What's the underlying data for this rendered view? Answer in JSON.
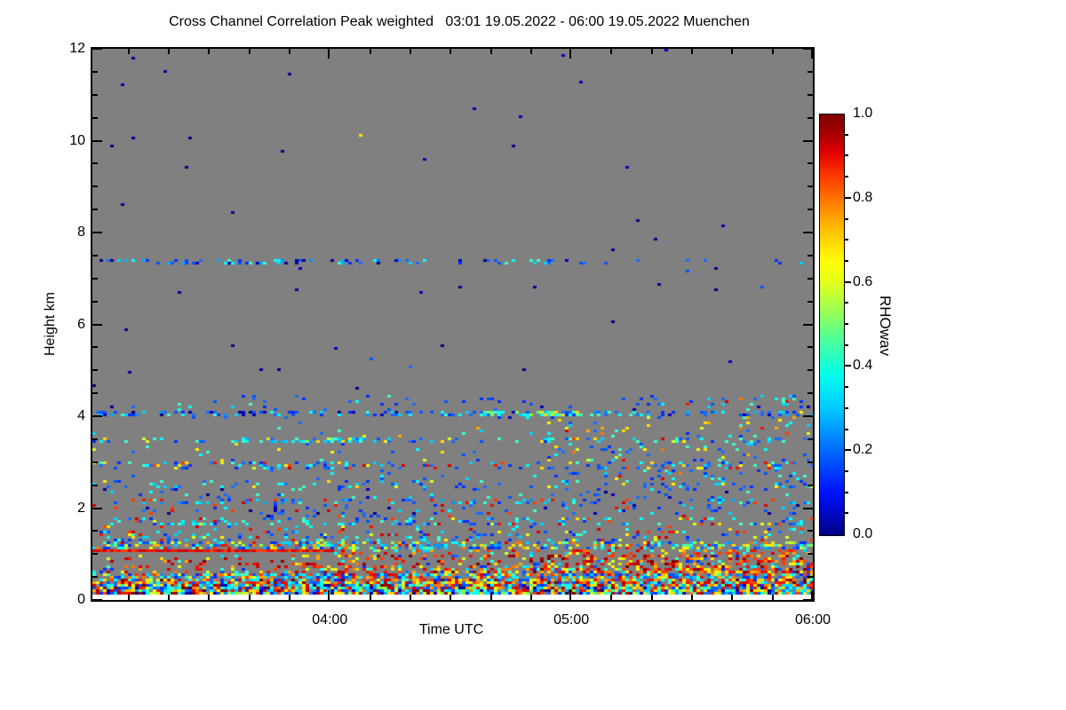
{
  "chart": {
    "title": "Cross Channel Correlation Peak weighted   03:01 19.05.2022 - 06:00 19.05.2022 Muenchen"
  },
  "chart_data": {
    "type": "heatmap",
    "title": "Cross Channel Correlation Peak weighted   03:01 19.05.2022 - 06:00 19.05.2022 Muenchen",
    "title_parts": {
      "measurement": "Cross Channel Correlation Peak weighted",
      "period": "03:01 19.05.2022 - 06:00 19.05.2022",
      "location": "Muenchen"
    },
    "x_axis": {
      "label": "Time UTC",
      "start": "03:01",
      "end": "06:00",
      "total_min": 179,
      "major_ticks": [
        {
          "label": "04:00",
          "min": 59
        },
        {
          "label": "05:00",
          "min": 119
        },
        {
          "label": "06:00",
          "min": 179
        }
      ],
      "minor_first_min": 9,
      "minor_step_min": 10
    },
    "y_axis": {
      "label": "Height km",
      "range": [
        0,
        12
      ],
      "major_ticks": [
        0,
        2,
        4,
        6,
        8,
        10,
        12
      ],
      "minor_step": 0.5
    },
    "colorbar": {
      "label": "RHOwav",
      "range": [
        0,
        1
      ],
      "tick_values": [
        0,
        0.2,
        0.4,
        0.6,
        0.8,
        1.0
      ],
      "tick_labels": [
        "0.0",
        "0.2",
        "0.4",
        "0.6",
        "0.8",
        "1.0"
      ],
      "minor_step": 0.05,
      "colormap": "jet"
    },
    "background_color": "#808080",
    "below_data_color": "#ffffff",
    "data_bottom_km": 0.12,
    "seed": 1234,
    "cell": {
      "w": 4,
      "h": 3
    },
    "palette": {
      "navy": [
        "#000090",
        "#0000c0"
      ],
      "blue": [
        "#0030ff",
        "#0055ff",
        "#1a6aff"
      ],
      "lblue": [
        "#0090ff",
        "#00b0ff"
      ],
      "cyan": [
        "#00d5ff",
        "#00ffff",
        "#3cffcc"
      ],
      "green": [
        "#55ff88",
        "#88ff44"
      ],
      "yellow": [
        "#d6ff22",
        "#fff200",
        "#ffdd00"
      ],
      "orange": [
        "#ffaa00",
        "#ff7700"
      ],
      "red": [
        "#ff3b00",
        "#ea1500",
        "#d40000"
      ],
      "darkred": [
        "#aa0000",
        "#800000"
      ]
    },
    "features": [
      {
        "km": [
          0.12,
          0.34
        ],
        "t": [
          0,
          1
        ],
        "d": 0.95,
        "p": "u",
        "pal": [
          [
            "blue",
            2
          ],
          [
            "cyan",
            3
          ],
          [
            "lblue",
            1
          ],
          [
            "yellow",
            2
          ],
          [
            "red",
            2
          ],
          [
            "orange",
            1
          ],
          [
            "green",
            1
          ],
          [
            "navy",
            1
          ],
          [
            "darkred",
            1
          ]
        ]
      },
      {
        "km": [
          0.34,
          0.44
        ],
        "t": [
          0,
          1
        ],
        "d": 0.8,
        "p": "u",
        "pal": [
          [
            "red",
            3
          ],
          [
            "orange",
            2
          ],
          [
            "yellow",
            2
          ],
          [
            "cyan",
            2
          ],
          [
            "blue",
            2
          ],
          [
            "darkred",
            1
          ]
        ]
      },
      {
        "km": [
          0.44,
          0.56
        ],
        "t": [
          0,
          1
        ],
        "d": 0.68,
        "p": "u",
        "pal": [
          [
            "blue",
            3
          ],
          [
            "cyan",
            3
          ],
          [
            "lblue",
            1
          ],
          [
            "red",
            2
          ],
          [
            "yellow",
            1
          ],
          [
            "orange",
            1
          ]
        ]
      },
      {
        "km": [
          0.56,
          0.72
        ],
        "t": [
          0,
          1
        ],
        "d": 0.5,
        "p": "r",
        "pal": [
          [
            "red",
            3
          ],
          [
            "orange",
            2
          ],
          [
            "darkred",
            1
          ],
          [
            "yellow",
            2
          ],
          [
            "cyan",
            1
          ],
          [
            "blue",
            1
          ]
        ]
      },
      {
        "km": [
          0.72,
          1.0
        ],
        "t": [
          0,
          1
        ],
        "d": 0.33,
        "p": "r",
        "pal": [
          [
            "red",
            4
          ],
          [
            "orange",
            2
          ],
          [
            "darkred",
            2
          ],
          [
            "yellow",
            2
          ],
          [
            "cyan",
            1
          ],
          [
            "blue",
            1
          ]
        ]
      },
      {
        "km": [
          1.02,
          1.09
        ],
        "t": [
          0,
          0.335
        ],
        "d": 0.98,
        "p": "u",
        "pal": [
          [
            "red",
            1
          ]
        ]
      },
      {
        "km": [
          1.0,
          1.1
        ],
        "t": [
          0.335,
          1
        ],
        "d": 0.2,
        "p": "r",
        "pal": [
          [
            "red",
            3
          ],
          [
            "orange",
            1
          ],
          [
            "yellow",
            1
          ],
          [
            "cyan",
            1
          ]
        ]
      },
      {
        "km": [
          1.12,
          1.3
        ],
        "t": [
          0,
          1
        ],
        "d": 0.5,
        "p": "u",
        "pal": [
          [
            "cyan",
            3
          ],
          [
            "yellow",
            2
          ],
          [
            "blue",
            2
          ],
          [
            "lblue",
            1
          ],
          [
            "red",
            1
          ],
          [
            "orange",
            1
          ],
          [
            "green",
            1
          ]
        ]
      },
      {
        "km": [
          1.3,
          1.5
        ],
        "t": [
          0,
          1
        ],
        "d": 0.16,
        "p": "u",
        "pal": [
          [
            "cyan",
            2
          ],
          [
            "blue",
            2
          ],
          [
            "red",
            1
          ],
          [
            "yellow",
            1
          ]
        ]
      },
      {
        "km": [
          1.5,
          1.66
        ],
        "t": [
          0,
          1
        ],
        "d": 0.1,
        "p": "u",
        "pal": [
          [
            "cyan",
            2
          ],
          [
            "blue",
            1
          ],
          [
            "red",
            1
          ],
          [
            "yellow",
            1
          ]
        ]
      },
      {
        "km": [
          1.64,
          1.78
        ],
        "t": [
          0,
          1
        ],
        "d": 0.22,
        "p": "u",
        "pal": [
          [
            "cyan",
            3
          ],
          [
            "blue",
            2
          ],
          [
            "yellow",
            1
          ],
          [
            "red",
            1
          ]
        ]
      },
      {
        "km": [
          1.78,
          2.06
        ],
        "t": [
          0,
          1
        ],
        "d": 0.09,
        "p": "u",
        "pal": [
          [
            "blue",
            2
          ],
          [
            "cyan",
            1
          ],
          [
            "navy",
            1
          ],
          [
            "red",
            1
          ]
        ]
      },
      {
        "km": [
          2.06,
          2.2
        ],
        "t": [
          0,
          1
        ],
        "d": 0.22,
        "p": "u",
        "pal": [
          [
            "blue",
            2
          ],
          [
            "cyan",
            2
          ],
          [
            "lblue",
            1
          ],
          [
            "red",
            1
          ]
        ]
      },
      {
        "km": [
          2.2,
          2.44
        ],
        "t": [
          0,
          1
        ],
        "d": 0.08,
        "p": "u",
        "pal": [
          [
            "blue",
            2
          ],
          [
            "cyan",
            1
          ],
          [
            "navy",
            1
          ]
        ]
      },
      {
        "km": [
          2.44,
          2.62
        ],
        "t": [
          0,
          1
        ],
        "d": 0.15,
        "p": "u",
        "pal": [
          [
            "blue",
            2
          ],
          [
            "cyan",
            2
          ],
          [
            "yellow",
            1
          ]
        ]
      },
      {
        "km": [
          2.62,
          2.86
        ],
        "t": [
          0,
          1
        ],
        "d": 0.05,
        "p": "r",
        "pal": [
          [
            "blue",
            2
          ],
          [
            "cyan",
            1
          ]
        ]
      },
      {
        "km": [
          2.86,
          3.04
        ],
        "t": [
          0,
          1
        ],
        "d": 0.22,
        "p": "u",
        "pal": [
          [
            "blue",
            3
          ],
          [
            "cyan",
            2
          ],
          [
            "red",
            1
          ],
          [
            "yellow",
            1
          ]
        ]
      },
      {
        "km": [
          3.04,
          3.4
        ],
        "t": [
          0,
          1
        ],
        "d": 0.035,
        "p": "r",
        "pal": [
          [
            "blue",
            2
          ],
          [
            "cyan",
            1
          ],
          [
            "yellow",
            1
          ]
        ]
      },
      {
        "km": [
          3.44,
          3.56
        ],
        "t": [
          0,
          1
        ],
        "d": 0.22,
        "p": "u",
        "pal": [
          [
            "cyan",
            2
          ],
          [
            "blue",
            2
          ],
          [
            "yellow",
            1
          ]
        ]
      },
      {
        "km": [
          3.44,
          3.56
        ],
        "t": [
          0.2,
          0.38
        ],
        "d": 0.45,
        "p": "u",
        "pal": [
          [
            "cyan",
            3
          ],
          [
            "yellow",
            1
          ],
          [
            "green",
            1
          ],
          [
            "lblue",
            1
          ]
        ]
      },
      {
        "km": [
          3.56,
          3.96
        ],
        "t": [
          0,
          1
        ],
        "d": 0.03,
        "p": "r",
        "pal": [
          [
            "blue",
            1
          ],
          [
            "cyan",
            1
          ],
          [
            "yellow",
            1
          ],
          [
            "orange",
            1
          ]
        ]
      },
      {
        "km": [
          3.96,
          4.25
        ],
        "t": [
          0,
          1
        ],
        "d": 0.05,
        "p": "r",
        "pal": [
          [
            "blue",
            2
          ],
          [
            "cyan",
            1
          ],
          [
            "navy",
            1
          ]
        ]
      },
      {
        "km": [
          4.02,
          4.14
        ],
        "t": [
          0,
          1
        ],
        "d": 0.28,
        "p": "u",
        "pal": [
          [
            "blue",
            3
          ],
          [
            "cyan",
            2
          ],
          [
            "navy",
            1
          ],
          [
            "lblue",
            1
          ]
        ]
      },
      {
        "km": [
          4.02,
          4.14
        ],
        "t": [
          0.54,
          0.68
        ],
        "d": 0.5,
        "p": "u",
        "pal": [
          [
            "cyan",
            3
          ],
          [
            "green",
            2
          ],
          [
            "yellow",
            1
          ]
        ]
      },
      {
        "km": [
          4.25,
          4.48
        ],
        "t": [
          0,
          1
        ],
        "d": 0.07,
        "p": "r",
        "pal": [
          [
            "blue",
            2
          ],
          [
            "cyan",
            1
          ]
        ]
      },
      {
        "km": [
          4.48,
          7.26
        ],
        "t": [
          0,
          1
        ],
        "d": 0.0025,
        "p": "u",
        "pal": [
          [
            "navy",
            2
          ],
          [
            "blue",
            1
          ]
        ]
      },
      {
        "km": [
          7.3,
          7.42
        ],
        "t": [
          0,
          0.45
        ],
        "d": 0.3,
        "p": "u",
        "pal": [
          [
            "blue",
            2
          ],
          [
            "cyan",
            2
          ],
          [
            "lblue",
            1
          ],
          [
            "navy",
            1
          ]
        ]
      },
      {
        "km": [
          7.3,
          7.42
        ],
        "t": [
          0.45,
          1
        ],
        "d": 0.12,
        "p": "u",
        "pal": [
          [
            "blue",
            2
          ],
          [
            "cyan",
            1
          ],
          [
            "navy",
            1
          ]
        ]
      },
      {
        "km": [
          7.44,
          12.0
        ],
        "t": [
          0,
          1
        ],
        "d": 0.0012,
        "p": "u",
        "pal": [
          [
            "navy",
            1
          ]
        ]
      },
      {
        "km": [
          2.3,
          4.4
        ],
        "t": [
          0.62,
          1
        ],
        "d": 0.025,
        "p": "u",
        "pal": [
          [
            "cyan",
            2
          ],
          [
            "yellow",
            1
          ],
          [
            "red",
            1
          ],
          [
            "orange",
            1
          ],
          [
            "blue",
            2
          ]
        ]
      }
    ],
    "dots": [
      {
        "t": 0.272,
        "km": 11.45,
        "c": "#000090"
      },
      {
        "t": 0.529,
        "km": 10.7,
        "c": "#0000b0"
      },
      {
        "t": 0.373,
        "km": 10.15,
        "c": "#ffe000"
      },
      {
        "t": 0.282,
        "km": 6.8,
        "c": "#0000a0"
      }
    ]
  }
}
